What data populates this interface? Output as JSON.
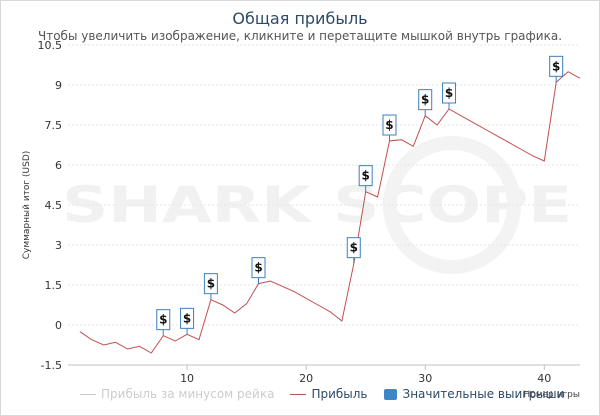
{
  "title": "Общая прибыль",
  "subtitle": "Чтобы увеличить изображение, кликните и перетащите мышкой внутрь графика.",
  "watermark": "SHARK SCOPE",
  "colors": {
    "line": "#c0504d",
    "marker_border": "#3c7fbf",
    "legend_box": "#3d85c6",
    "grid": "#e6e6e6"
  },
  "chart_data": {
    "type": "line",
    "title": "Общая прибыль",
    "xlabel": "Номер игры",
    "ylabel": "Суммарный итог (USD)",
    "xlim": [
      0,
      43
    ],
    "ylim": [
      -1.5,
      10.5
    ],
    "x_ticks": [
      10,
      20,
      30,
      40
    ],
    "y_ticks": [
      -1.5,
      0,
      1.5,
      3,
      4.5,
      6,
      7.5,
      9,
      10.5
    ],
    "y_tick_labels": [
      "-1.5",
      "0",
      "1.5",
      "3",
      "4.5",
      "6",
      "7.5",
      "9",
      "10.5"
    ],
    "series": [
      {
        "name": "Прибыль",
        "x": [
          1,
          2,
          3,
          4,
          5,
          6,
          7,
          8,
          9,
          10,
          11,
          12,
          13,
          14,
          15,
          16,
          17,
          18,
          19,
          20,
          21,
          22,
          23,
          24,
          25,
          26,
          27,
          28,
          29,
          30,
          31,
          32,
          33,
          34,
          35,
          36,
          37,
          38,
          39,
          40,
          41,
          42,
          43
        ],
        "y": [
          -0.25,
          -0.55,
          -0.75,
          -0.65,
          -0.9,
          -0.8,
          -1.05,
          -0.4,
          -0.6,
          -0.35,
          -0.55,
          0.95,
          0.75,
          0.45,
          0.8,
          1.55,
          1.65,
          1.45,
          1.25,
          1.0,
          0.75,
          0.5,
          0.15,
          2.3,
          5.0,
          4.8,
          6.9,
          6.95,
          6.7,
          7.85,
          7.5,
          8.1,
          7.85,
          7.6,
          7.35,
          7.1,
          6.85,
          6.6,
          6.35,
          6.15,
          9.1,
          9.5,
          9.25
        ]
      }
    ],
    "significant_wins": [
      8,
      10,
      12,
      16,
      24,
      25,
      27,
      30,
      32,
      41
    ],
    "marker_label": "$",
    "legend": [
      {
        "label": "Прибыль за минусом рейка",
        "type": "line",
        "enabled": false
      },
      {
        "label": "Прибыль",
        "type": "line",
        "enabled": true
      },
      {
        "label": "Значительные выигрыши",
        "type": "box",
        "enabled": true
      }
    ]
  }
}
